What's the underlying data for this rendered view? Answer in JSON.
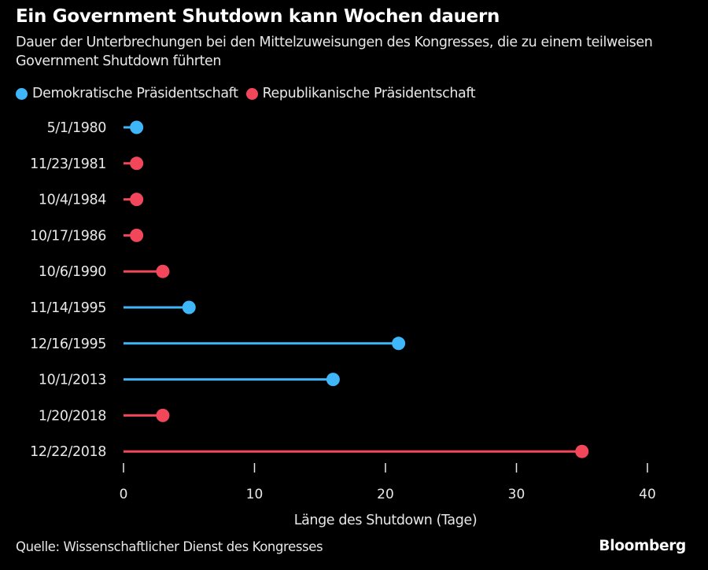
{
  "header": {
    "title": "Ein Government Shutdown kann Wochen dauern",
    "subtitle": "Dauer der Unterbrechungen bei den Mittelzuweisungen des Kongresses, die zu einem teilweisen Government Shutdown führten"
  },
  "legend": [
    {
      "label": "Demokratische Präsidentschaft",
      "color": "#3fb6f8"
    },
    {
      "label": "Republikanische Präsidentschaft",
      "color": "#f2475a"
    }
  ],
  "footer": {
    "source": "Quelle: Wissenschaftlicher Dienst des Kongresses",
    "brand": "Bloomberg"
  },
  "chart_data": {
    "type": "lollipop",
    "title": "Ein Government Shutdown kann Wochen dauern",
    "subtitle": "Dauer der Unterbrechungen bei den Mittelzuweisungen des Kongresses, die zu einem teilweisen Government Shutdown führten",
    "xlabel": "Länge des Shutdown (Tage)",
    "ylabel": "",
    "xlim": [
      0,
      40
    ],
    "xticks": [
      0,
      10,
      20,
      30,
      40
    ],
    "xtick_labels": [
      "0",
      "10",
      "20",
      "30",
      "40"
    ],
    "grid": false,
    "legend_position": "top-left",
    "series_colors": {
      "Demokratische Präsidentschaft": "#3fb6f8",
      "Republikanische Präsidentschaft": "#f2475a"
    },
    "categories": [
      "5/1/1980",
      "11/23/1981",
      "10/4/1984",
      "10/17/1986",
      "10/6/1990",
      "11/14/1995",
      "12/16/1995",
      "10/1/2013",
      "1/20/2018",
      "12/22/2018"
    ],
    "values": [
      1,
      1,
      1,
      1,
      3,
      5,
      21,
      16,
      3,
      35
    ],
    "party": [
      "Demokratische Präsidentschaft",
      "Republikanische Präsidentschaft",
      "Republikanische Präsidentschaft",
      "Republikanische Präsidentschaft",
      "Republikanische Präsidentschaft",
      "Demokratische Präsidentschaft",
      "Demokratische Präsidentschaft",
      "Demokratische Präsidentschaft",
      "Republikanische Präsidentschaft",
      "Republikanische Präsidentschaft"
    ]
  }
}
